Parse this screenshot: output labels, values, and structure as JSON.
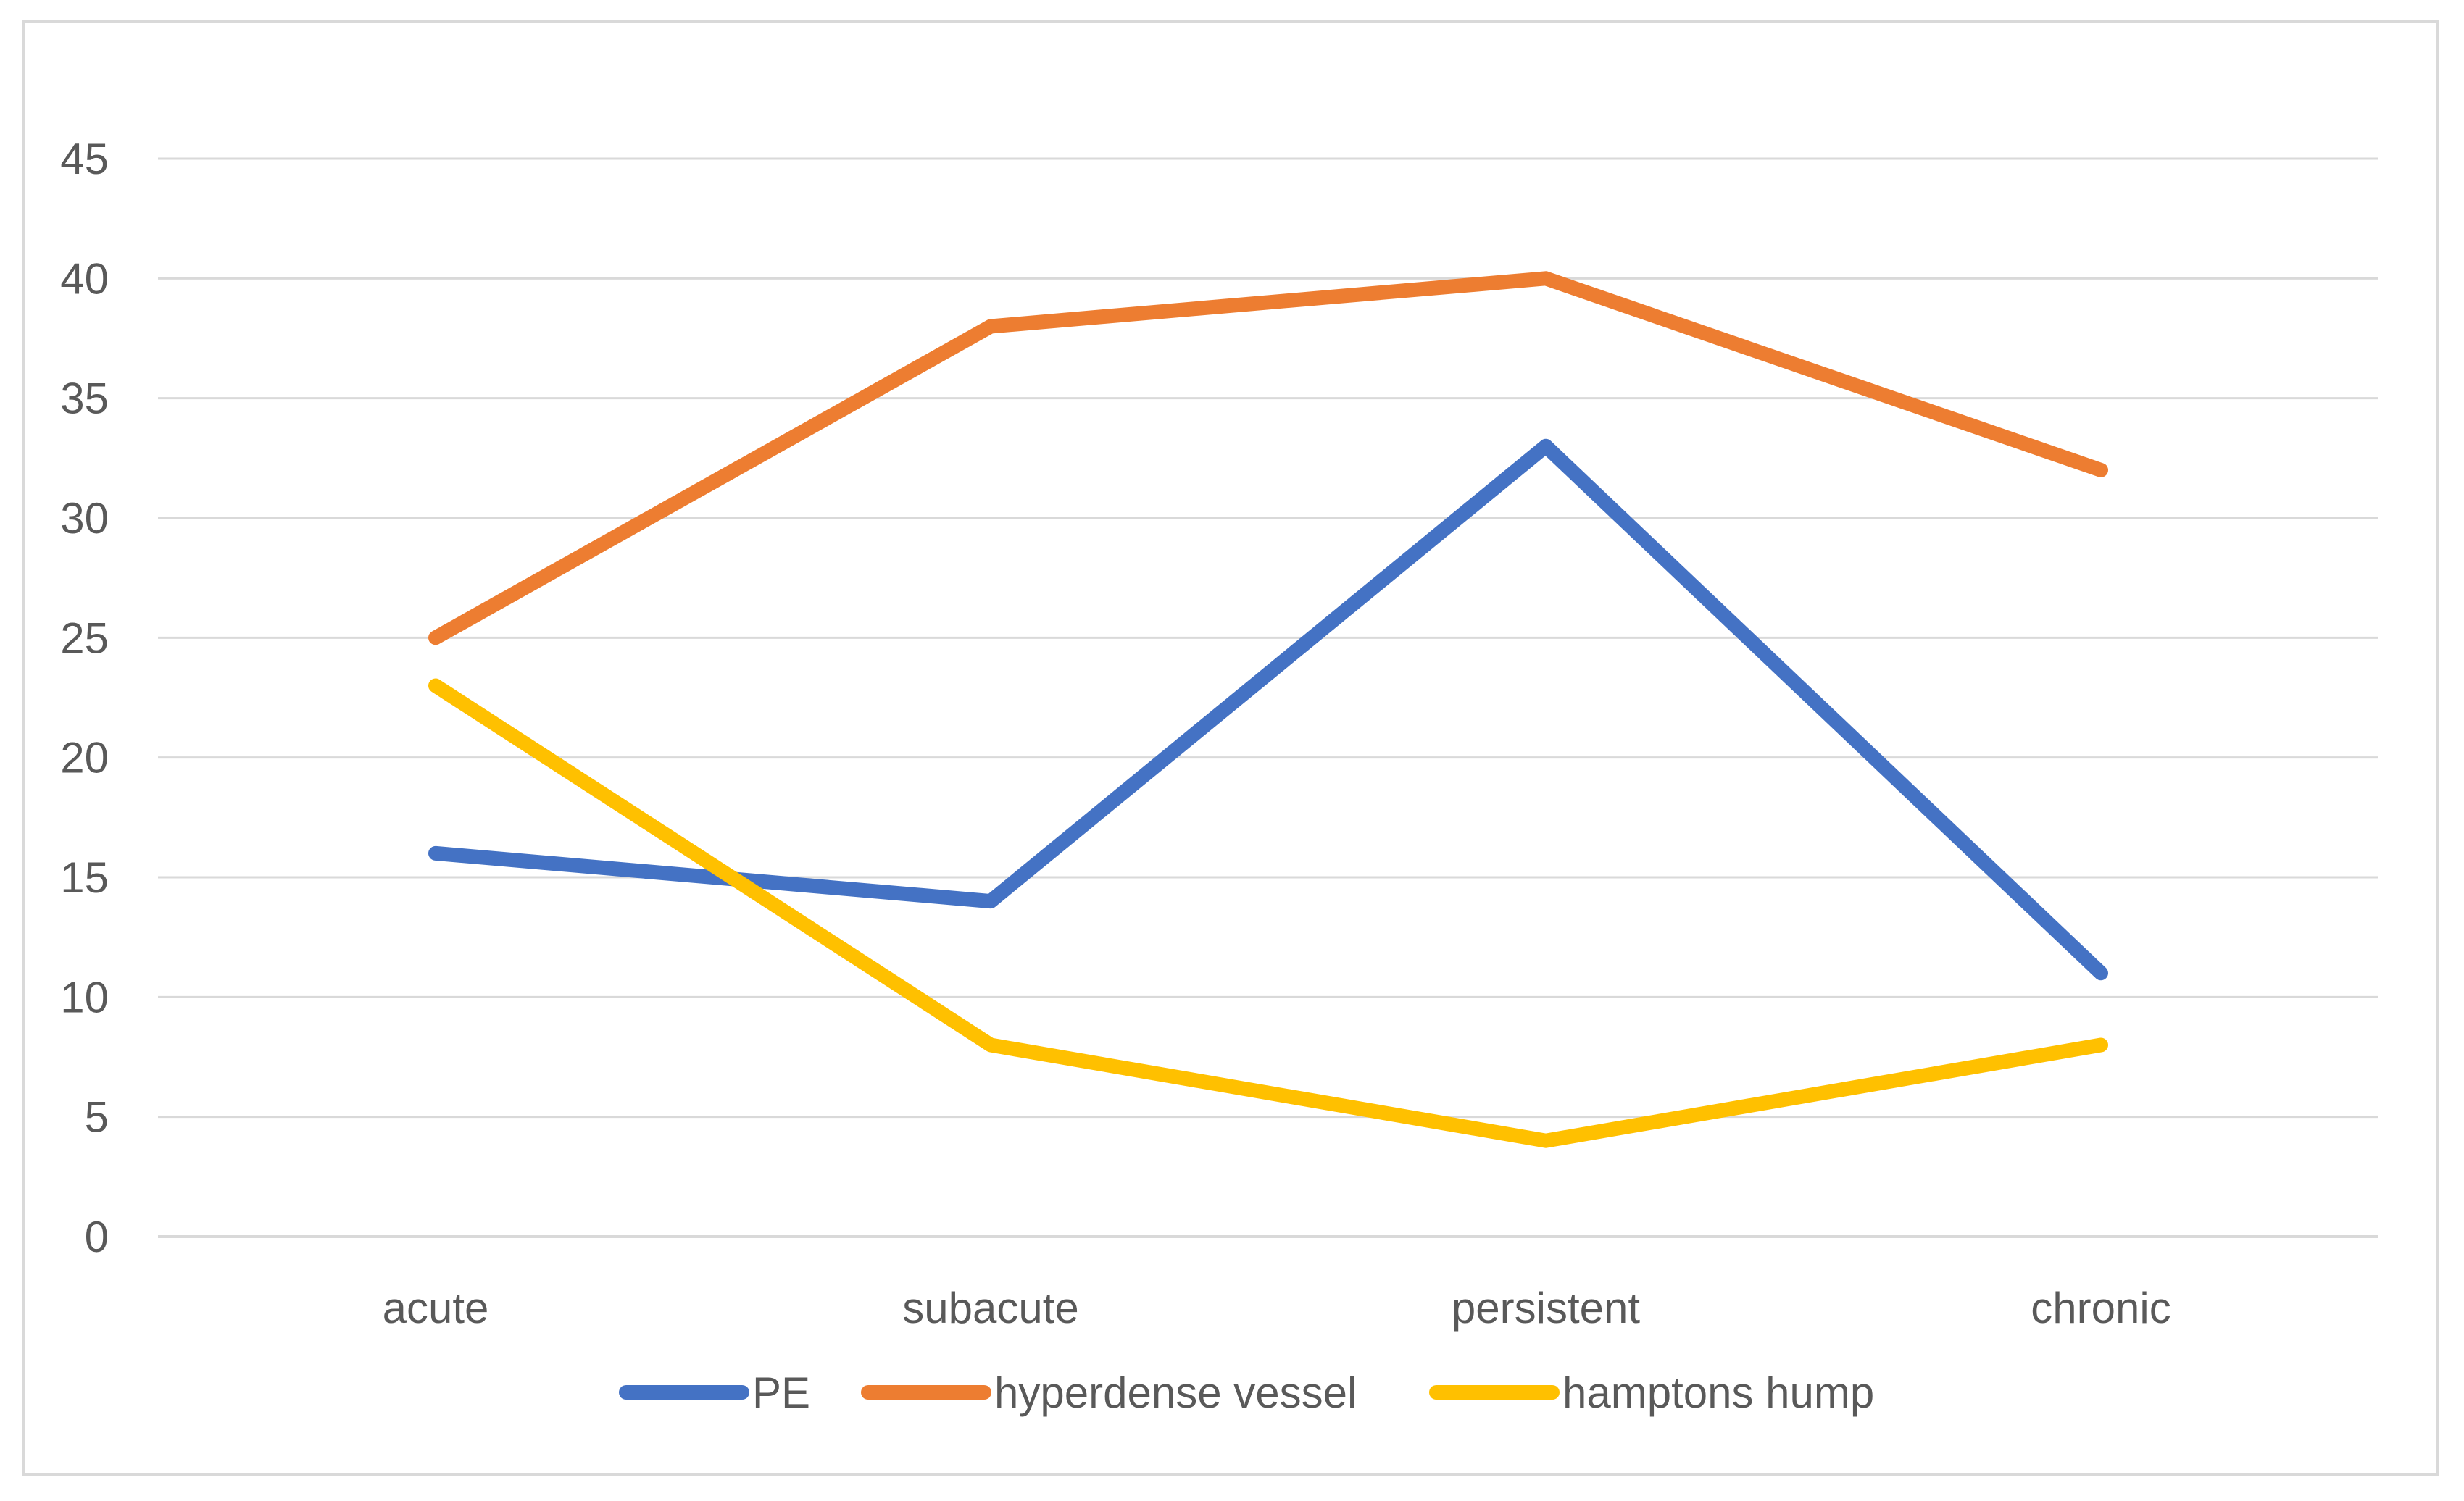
{
  "chart_data": {
    "type": "line",
    "title": "",
    "xlabel": "",
    "ylabel": "",
    "categories": [
      "acute",
      "subacute",
      "persistent",
      "chronic"
    ],
    "ylim": [
      0,
      45
    ],
    "y_ticks": [
      "0",
      "5",
      "10",
      "15",
      "20",
      "25",
      "30",
      "35",
      "40",
      "45"
    ],
    "grid": true,
    "legend_position": "bottom",
    "series": [
      {
        "name": "PE",
        "color": "#4472c4",
        "values": [
          16,
          14,
          33,
          11
        ]
      },
      {
        "name": "hyperdense vessel",
        "color": "#ed7d31",
        "values": [
          25,
          38,
          40,
          32
        ]
      },
      {
        "name": "hamptons hump",
        "color": "#ffc000",
        "values": [
          23,
          8,
          4,
          8
        ]
      }
    ]
  }
}
